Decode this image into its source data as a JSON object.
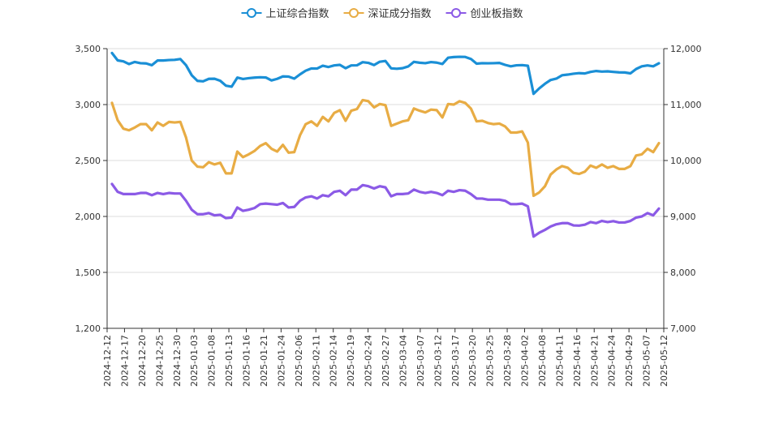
{
  "chart_data": {
    "type": "line",
    "title": "",
    "legend": {
      "position": "top-center",
      "items": [
        {
          "label": "上证综合指数",
          "color": "#1a8fd6"
        },
        {
          "label": "深证成分指数",
          "color": "#e8ac44"
        },
        {
          "label": "创业板指数",
          "color": "#8b5ae6"
        }
      ]
    },
    "y_left": {
      "ticks": [
        1200,
        1500,
        2000,
        2500,
        3000,
        3500
      ],
      "tick_labels": [
        "1,200",
        "1,500",
        "2,000",
        "2,500",
        "3,000",
        "3,500"
      ],
      "range": [
        1200,
        3500
      ]
    },
    "y_right": {
      "ticks": [
        7000,
        8000,
        9000,
        10000,
        11000,
        12000
      ],
      "tick_labels": [
        "7,000",
        "8,000",
        "9,000",
        "10,000",
        "11,000",
        "12,000"
      ],
      "range": [
        7000,
        12000
      ]
    },
    "x_tick_labels": [
      "2024-12-12",
      "2024-12-17",
      "2024-12-20",
      "2024-12-25",
      "2024-12-30",
      "2025-01-03",
      "2025-01-08",
      "2025-01-13",
      "2025-01-16",
      "2025-01-21",
      "2025-01-24",
      "2025-02-06",
      "2025-02-11",
      "2025-02-14",
      "2025-02-19",
      "2025-02-24",
      "2025-02-27",
      "2025-03-04",
      "2025-03-07",
      "2025-03-12",
      "2025-03-17",
      "2025-03-20",
      "2025-03-25",
      "2025-03-28",
      "2025-04-02",
      "2025-04-08",
      "2025-04-11",
      "2025-04-16",
      "2025-04-21",
      "2025-04-24",
      "2025-04-29",
      "2025-05-07",
      "2025-05-12"
    ],
    "grid": true,
    "series": [
      {
        "name": "上证综合指数",
        "axis": "left",
        "color": "#1a8fd6",
        "values": [
          3461,
          3395,
          3386,
          3362,
          3381,
          3370,
          3368,
          3352,
          3394,
          3394,
          3398,
          3400,
          3407,
          3352,
          3262,
          3212,
          3208,
          3230,
          3231,
          3213,
          3169,
          3160,
          3241,
          3229,
          3236,
          3241,
          3244,
          3242,
          3216,
          3230,
          3252,
          3250,
          3232,
          3270,
          3303,
          3323,
          3322,
          3347,
          3336,
          3350,
          3355,
          3325,
          3350,
          3351,
          3379,
          3373,
          3353,
          3383,
          3390,
          3324,
          3320,
          3325,
          3341,
          3382,
          3374,
          3370,
          3380,
          3375,
          3363,
          3419,
          3425,
          3427,
          3426,
          3408,
          3366,
          3370,
          3369,
          3370,
          3372,
          3355,
          3342,
          3351,
          3353,
          3347,
          3096,
          3145,
          3186,
          3220,
          3232,
          3262,
          3268,
          3276,
          3281,
          3278,
          3292,
          3300,
          3295,
          3297,
          3292,
          3288,
          3287,
          3279,
          3318,
          3342,
          3350,
          3342,
          3369
        ]
      },
      {
        "name": "深证成分指数",
        "axis": "right",
        "color": "#e8ac44",
        "values": [
          11030,
          10720,
          10570,
          10540,
          10590,
          10650,
          10650,
          10540,
          10680,
          10620,
          10690,
          10680,
          10690,
          10410,
          10000,
          9890,
          9880,
          9970,
          9930,
          9960,
          9770,
          9770,
          10160,
          10060,
          10110,
          10170,
          10260,
          10310,
          10210,
          10160,
          10280,
          10140,
          10150,
          10450,
          10650,
          10700,
          10620,
          10780,
          10700,
          10850,
          10900,
          10710,
          10890,
          10920,
          11080,
          11060,
          10950,
          11010,
          10990,
          10620,
          10660,
          10700,
          10720,
          10930,
          10890,
          10860,
          10910,
          10900,
          10770,
          11010,
          11000,
          11060,
          11030,
          10930,
          10700,
          10710,
          10670,
          10650,
          10660,
          10610,
          10500,
          10500,
          10520,
          10320,
          9370,
          9430,
          9540,
          9750,
          9840,
          9900,
          9870,
          9780,
          9760,
          9800,
          9910,
          9870,
          9930,
          9870,
          9900,
          9850,
          9850,
          9900,
          10090,
          10110,
          10210,
          10150,
          10310
        ]
      },
      {
        "name": "创业板指数",
        "axis": "left",
        "color": "#8b5ae6",
        "values": [
          2290,
          2220,
          2200,
          2200,
          2200,
          2210,
          2210,
          2190,
          2210,
          2200,
          2210,
          2205,
          2205,
          2140,
          2060,
          2020,
          2020,
          2030,
          2010,
          2015,
          1985,
          1990,
          2080,
          2050,
          2060,
          2075,
          2110,
          2115,
          2110,
          2105,
          2120,
          2080,
          2085,
          2140,
          2170,
          2180,
          2160,
          2190,
          2180,
          2220,
          2230,
          2190,
          2240,
          2240,
          2280,
          2270,
          2250,
          2270,
          2260,
          2180,
          2200,
          2200,
          2205,
          2240,
          2220,
          2210,
          2220,
          2210,
          2190,
          2230,
          2220,
          2235,
          2230,
          2200,
          2160,
          2160,
          2150,
          2150,
          2150,
          2140,
          2110,
          2110,
          2115,
          2090,
          1820,
          1855,
          1880,
          1910,
          1930,
          1940,
          1940,
          1920,
          1918,
          1926,
          1950,
          1940,
          1960,
          1950,
          1958,
          1946,
          1946,
          1960,
          1990,
          2000,
          2030,
          2010,
          2070
        ]
      }
    ]
  }
}
